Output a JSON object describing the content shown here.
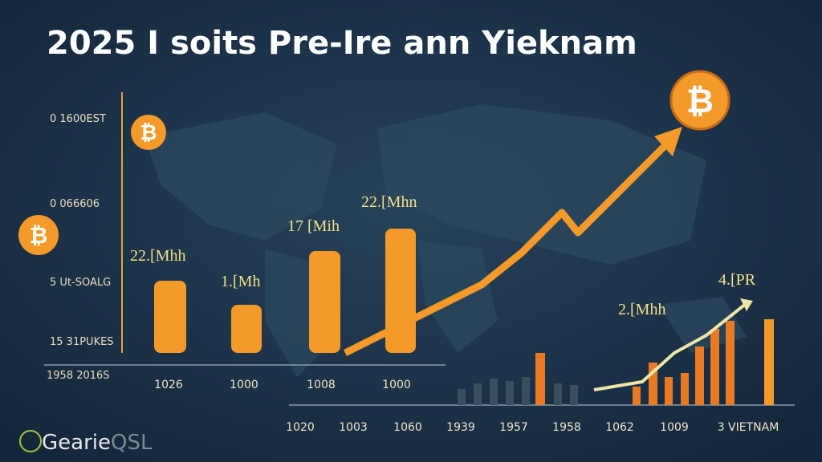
{
  "header": {
    "title": "2025 I soits Pre-Ire ann Yieknam"
  },
  "bitcoin_symbol": "₿",
  "left_axis_labels": [
    "0 1600EST",
    "0 066606",
    "5 Ut-SOALG",
    "15 31PUKES",
    "1958 2016S"
  ],
  "main_chart": {
    "bar_labels": [
      "22.[Mhh",
      "1.[Mh",
      "17 [Mih",
      "22.[Mhn"
    ],
    "x_labels": [
      "1026",
      "1000",
      "1008",
      "1000"
    ]
  },
  "right_chart": {
    "labels": [
      "2.[Mhh",
      "4.[PR"
    ]
  },
  "bottom_labels": [
    "1020",
    "1003",
    "1060",
    "1939",
    "1957",
    "1958",
    "1062",
    "1009",
    "3 VIETNAM"
  ],
  "footer": {
    "brand": "Gearie",
    "suffix": "QSL"
  }
}
